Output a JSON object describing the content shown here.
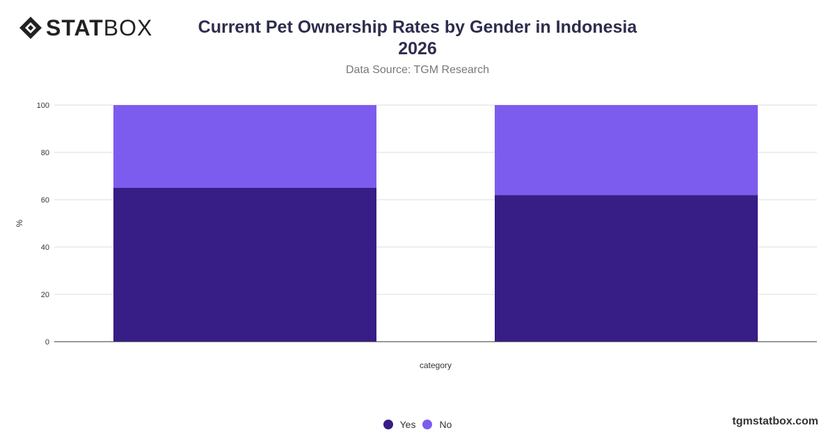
{
  "logo": {
    "bold": "STAT",
    "light": "BOX"
  },
  "title": {
    "line1": "Current Pet Ownership Rates by Gender in Indonesia",
    "line2": "2026"
  },
  "subtitle": "Data Source: TGM Research",
  "footer": "tgmstatbox.com",
  "colors": {
    "yes": "#371d86",
    "no": "#7c5cee"
  },
  "chart_data": {
    "type": "bar",
    "stacked": true,
    "categories": [
      "",
      ""
    ],
    "series": [
      {
        "name": "Yes",
        "values": [
          65,
          62
        ]
      },
      {
        "name": "No",
        "values": [
          35,
          38
        ]
      }
    ],
    "xlabel": "category",
    "ylabel": "%",
    "ylim": [
      0,
      100
    ],
    "yticks": [
      "0",
      "20",
      "40",
      "60",
      "80",
      "100"
    ],
    "grid": true,
    "legend": "bottom-center"
  }
}
